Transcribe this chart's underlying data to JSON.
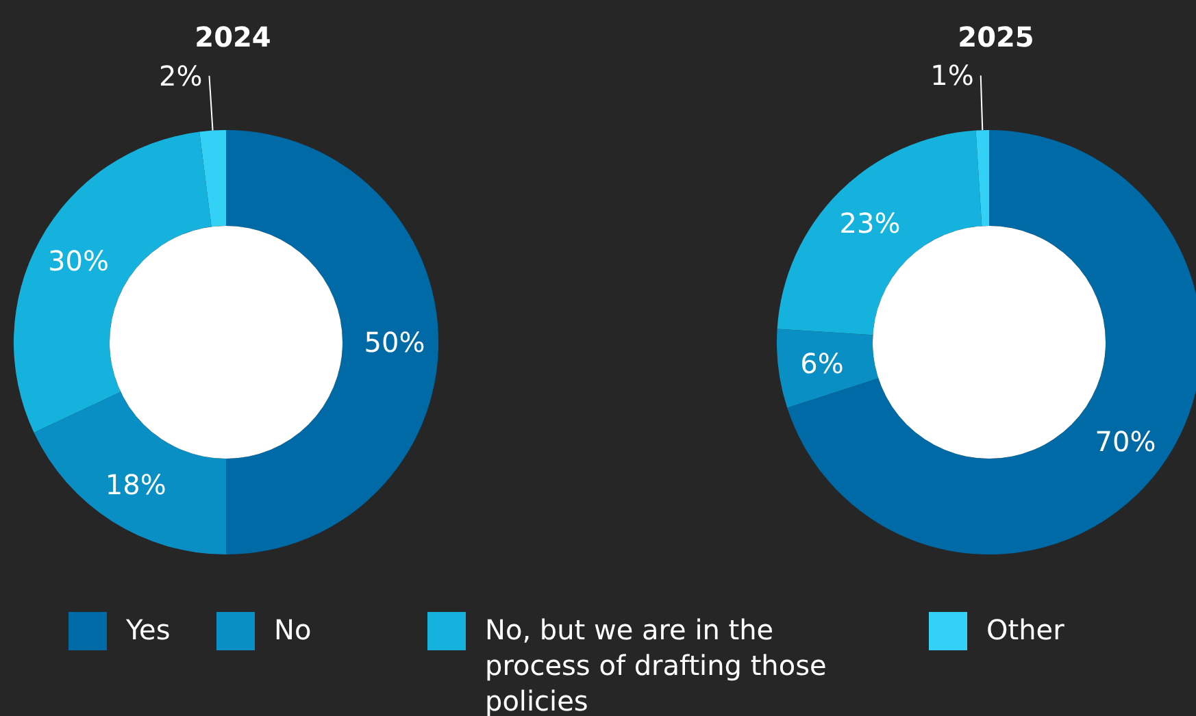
{
  "chart_data": [
    {
      "type": "donut",
      "title": "2024",
      "categories": [
        "Yes",
        "No",
        "No, but we are in the process of drafting those policies",
        "Other"
      ],
      "values": [
        50,
        18,
        30,
        2
      ],
      "value_labels": [
        "50%",
        "18%",
        "30%",
        "2%"
      ],
      "colors": [
        "#006aa7",
        "#0a8fc4",
        "#14b2dd",
        "#33d1f6"
      ],
      "legend": "bottom"
    },
    {
      "type": "donut",
      "title": "2025",
      "categories": [
        null,
        null,
        null,
        null
      ],
      "values": [
        70,
        6,
        23,
        1
      ],
      "value_labels": [
        "70%",
        "6%",
        "23%",
        "1%"
      ],
      "colors": [
        "#006aa7",
        "#0a8fc4",
        "#14b2dd",
        "#33d1f6"
      ]
    }
  ]
}
